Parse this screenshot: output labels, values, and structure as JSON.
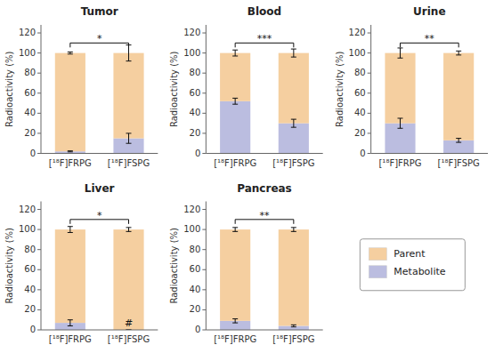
{
  "chart_data": [
    {
      "type": "bar",
      "stacked": true,
      "title": "Tumor",
      "y_label": "Radioactivity (%)",
      "categories": [
        "[¹⁸F]FRPG",
        "[¹⁸F]FSPG"
      ],
      "series": [
        {
          "name": "Metabolite",
          "color": "#BBBDE0",
          "values": [
            2,
            15
          ],
          "errors": [
            0.5,
            5
          ]
        },
        {
          "name": "Parent",
          "color": "#F5CFA0",
          "values": [
            98,
            85
          ],
          "errors": [
            1,
            8
          ]
        }
      ],
      "ylim": [
        0,
        128
      ],
      "yticks": [
        0,
        20,
        40,
        60,
        80,
        100,
        120
      ],
      "grid": false,
      "legend": "lower right",
      "annotations": [
        {
          "text": "*",
          "y": 110
        }
      ]
    },
    {
      "type": "bar",
      "stacked": true,
      "title": "Blood",
      "y_label": "Radioactivity (%)",
      "categories": [
        "[¹⁸F]FRPG",
        "[¹⁸F]FSPG"
      ],
      "series": [
        {
          "name": "Metabolite",
          "color": "#BBBDE0",
          "values": [
            52,
            30
          ],
          "errors": [
            3,
            4
          ]
        },
        {
          "name": "Parent",
          "color": "#F5CFA0",
          "values": [
            48,
            70
          ],
          "errors": [
            3,
            4
          ]
        }
      ],
      "ylim": [
        0,
        128
      ],
      "yticks": [
        0,
        20,
        40,
        60,
        80,
        100,
        120
      ],
      "grid": false,
      "annotations": [
        {
          "text": "***",
          "y": 110
        }
      ]
    },
    {
      "type": "bar",
      "stacked": true,
      "title": "Urine",
      "y_label": "Radioactivity (%)",
      "categories": [
        "[¹⁸F]FRPG",
        "[¹⁸F]FSPG"
      ],
      "series": [
        {
          "name": "Metabolite",
          "color": "#BBBDE0",
          "values": [
            30,
            13
          ],
          "errors": [
            5,
            2
          ]
        },
        {
          "name": "Parent",
          "color": "#F5CFA0",
          "values": [
            70,
            87
          ],
          "errors": [
            5,
            2
          ]
        }
      ],
      "ylim": [
        0,
        128
      ],
      "yticks": [
        0,
        20,
        40,
        60,
        80,
        100,
        120
      ],
      "grid": false,
      "annotations": [
        {
          "text": "**",
          "y": 110
        }
      ]
    },
    {
      "type": "bar",
      "stacked": true,
      "title": "Liver",
      "y_label": "Radioactivity (%)",
      "categories": [
        "[¹⁸F]FRPG",
        "[¹⁸F]FSPG"
      ],
      "series": [
        {
          "name": "Metabolite",
          "color": "#BBBDE0",
          "values": [
            7,
            0
          ],
          "errors": [
            3,
            0
          ]
        },
        {
          "name": "Parent",
          "color": "#F5CFA0",
          "values": [
            93,
            100
          ],
          "errors": [
            3,
            2
          ]
        }
      ],
      "ylim": [
        0,
        128
      ],
      "yticks": [
        0,
        20,
        40,
        60,
        80,
        100,
        120
      ],
      "grid": false,
      "annotations": [
        {
          "text": "*",
          "y": 110
        },
        {
          "text": "#",
          "category": "[¹⁸F]FSPG",
          "y": 2
        }
      ]
    },
    {
      "type": "bar",
      "stacked": true,
      "title": "Pancreas",
      "y_label": "Radioactivity (%)",
      "categories": [
        "[¹⁸F]FRPG",
        "[¹⁸F]FSPG"
      ],
      "series": [
        {
          "name": "Metabolite",
          "color": "#BBBDE0",
          "values": [
            9,
            4
          ],
          "errors": [
            2,
            1
          ]
        },
        {
          "name": "Parent",
          "color": "#F5CFA0",
          "values": [
            91,
            96
          ],
          "errors": [
            2,
            2
          ]
        }
      ],
      "ylim": [
        0,
        128
      ],
      "yticks": [
        0,
        20,
        40,
        60,
        80,
        100,
        120
      ],
      "grid": false,
      "annotations": [
        {
          "text": "**",
          "y": 110
        }
      ]
    }
  ]
}
